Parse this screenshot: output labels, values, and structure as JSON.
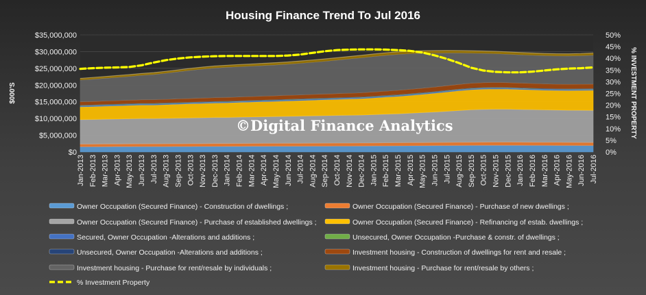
{
  "chart_data": {
    "type": "area",
    "title": "Housing  Finance  Trend  To  Jul  2016",
    "ylabel": "$000'S",
    "y2label": "% INVESTMENT PROPERTY",
    "ylim": [
      0,
      35000000
    ],
    "y2lim": [
      0,
      50
    ],
    "y_ticks": [
      "$0",
      "$5,000,000",
      "$10,000,000",
      "$15,000,000",
      "$20,000,000",
      "$25,000,000",
      "$30,000,000",
      "$35,000,000"
    ],
    "y2_ticks": [
      "0%",
      "5%",
      "10%",
      "15%",
      "20%",
      "25%",
      "30%",
      "35%",
      "40%",
      "45%",
      "50%"
    ],
    "stacked": true,
    "legend_position": "bottom",
    "watermark": "©Digital Finance Analytics",
    "categories": [
      "Jan-2013",
      "Feb-2013",
      "Mar-2013",
      "Apr-2013",
      "May-2013",
      "Jun-2013",
      "Jul-2013",
      "Aug-2013",
      "Sep-2013",
      "Oct-2013",
      "Nov-2013",
      "Dec-2013",
      "Jan-2014",
      "Feb-2014",
      "Mar-2014",
      "Apr-2014",
      "May-2014",
      "Jun-2014",
      "Jul-2014",
      "Aug-2014",
      "Sep-2014",
      "Oct-2014",
      "Nov-2014",
      "Dec-2014",
      "Jan-2015",
      "Feb-2015",
      "Mar-2015",
      "Apr-2015",
      "May-2015",
      "Jun-2015",
      "Jul-2015",
      "Aug-2015",
      "Sep-2015",
      "Oct-2015",
      "Nov-2015",
      "Dec-2015",
      "Jan-2016",
      "Feb-2016",
      "Mar-2016",
      "Apr-2016",
      "May-2016",
      "Jun-2016",
      "Jul-2016"
    ],
    "series": [
      {
        "name": "Owner Occupation (Secured Finance) - Construction of dwellings ;",
        "color": "#5b9bd5",
        "values": [
          1600000,
          1600000,
          1620000,
          1630000,
          1640000,
          1650000,
          1650000,
          1660000,
          1670000,
          1680000,
          1690000,
          1700000,
          1710000,
          1720000,
          1730000,
          1740000,
          1750000,
          1760000,
          1770000,
          1780000,
          1790000,
          1800000,
          1810000,
          1820000,
          1840000,
          1860000,
          1880000,
          1900000,
          1920000,
          1940000,
          1960000,
          1980000,
          2000000,
          2020000,
          2030000,
          2030000,
          2020000,
          2010000,
          2000000,
          1990000,
          1980000,
          1970000,
          1960000
        ]
      },
      {
        "name": "Owner Occupation (Secured Finance) - Purchase of new dwellings ;",
        "color": "#ed7d31",
        "values": [
          800000,
          800000,
          810000,
          810000,
          820000,
          820000,
          820000,
          830000,
          830000,
          840000,
          840000,
          850000,
          850000,
          860000,
          860000,
          870000,
          870000,
          880000,
          880000,
          890000,
          890000,
          900000,
          900000,
          910000,
          910000,
          920000,
          920000,
          930000,
          930000,
          940000,
          940000,
          950000,
          950000,
          950000,
          950000,
          950000,
          940000,
          940000,
          930000,
          930000,
          920000,
          920000,
          910000
        ]
      },
      {
        "name": "Owner Occupation (Secured Finance) - Purchase of established dwellings ;",
        "color": "#a5a5a5",
        "values": [
          7300000,
          7350000,
          7400000,
          7450000,
          7500000,
          7550000,
          7550000,
          7600000,
          7650000,
          7700000,
          7750000,
          7800000,
          7800000,
          7850000,
          7900000,
          7950000,
          8000000,
          8050000,
          8100000,
          8150000,
          8200000,
          8250000,
          8300000,
          8350000,
          8450000,
          8550000,
          8650000,
          8800000,
          8950000,
          9100000,
          9300000,
          9500000,
          9700000,
          9800000,
          9850000,
          9850000,
          9800000,
          9750000,
          9700000,
          9650000,
          9600000,
          9600000,
          9600000
        ]
      },
      {
        "name": "Owner Occupation (Secured Finance) - Refinancing of estab. dwellings ;",
        "color": "#ffc000",
        "values": [
          3800000,
          3850000,
          3900000,
          3950000,
          4000000,
          4050000,
          4050000,
          4100000,
          4150000,
          4200000,
          4250000,
          4300000,
          4350000,
          4400000,
          4450000,
          4500000,
          4550000,
          4600000,
          4650000,
          4700000,
          4750000,
          4800000,
          4850000,
          4900000,
          5000000,
          5100000,
          5200000,
          5300000,
          5450000,
          5600000,
          5750000,
          5900000,
          6000000,
          6050000,
          6050000,
          6000000,
          5950000,
          5900000,
          5850000,
          5850000,
          5900000,
          5950000,
          6000000
        ]
      },
      {
        "name": "Secured, Owner Occupation -Alterations and additions ;",
        "color": "#4472c4",
        "values": [
          300000,
          300000,
          300000,
          300000,
          300000,
          300000,
          300000,
          300000,
          300000,
          300000,
          300000,
          300000,
          300000,
          300000,
          300000,
          300000,
          300000,
          300000,
          300000,
          300000,
          300000,
          300000,
          300000,
          300000,
          300000,
          300000,
          300000,
          300000,
          300000,
          300000,
          300000,
          300000,
          300000,
          300000,
          300000,
          300000,
          300000,
          300000,
          300000,
          300000,
          300000,
          300000,
          300000
        ]
      },
      {
        "name": "Unsecured, Owner Occupation -Purchase & constr. of dwellings ;",
        "color": "#70ad47",
        "values": [
          100000,
          100000,
          100000,
          100000,
          100000,
          100000,
          100000,
          100000,
          100000,
          100000,
          100000,
          100000,
          100000,
          100000,
          100000,
          100000,
          100000,
          100000,
          100000,
          100000,
          100000,
          100000,
          100000,
          100000,
          100000,
          100000,
          100000,
          100000,
          100000,
          100000,
          100000,
          100000,
          100000,
          100000,
          100000,
          100000,
          100000,
          100000,
          100000,
          100000,
          100000,
          100000,
          100000
        ]
      },
      {
        "name": "Unsecured, Owner Occupation -Alterations and additions ;",
        "color": "#264478",
        "values": [
          150000,
          150000,
          150000,
          150000,
          150000,
          150000,
          150000,
          150000,
          150000,
          150000,
          150000,
          150000,
          150000,
          150000,
          150000,
          150000,
          150000,
          150000,
          150000,
          150000,
          150000,
          150000,
          150000,
          150000,
          150000,
          150000,
          150000,
          150000,
          150000,
          150000,
          150000,
          150000,
          150000,
          150000,
          150000,
          150000,
          150000,
          150000,
          150000,
          150000,
          150000,
          150000,
          150000
        ]
      },
      {
        "name": "Investment housing - Construction of dwellings for rent and resale ;",
        "color": "#9e480e",
        "values": [
          1000000,
          1000000,
          1010000,
          1020000,
          1030000,
          1040000,
          1050000,
          1060000,
          1070000,
          1080000,
          1090000,
          1100000,
          1110000,
          1120000,
          1130000,
          1140000,
          1150000,
          1160000,
          1170000,
          1180000,
          1190000,
          1200000,
          1210000,
          1220000,
          1240000,
          1260000,
          1280000,
          1300000,
          1320000,
          1340000,
          1360000,
          1380000,
          1400000,
          1410000,
          1410000,
          1400000,
          1390000,
          1380000,
          1370000,
          1360000,
          1350000,
          1340000,
          1330000
        ]
      },
      {
        "name": "Investment housing - Purchase for rent/resale by individuals ;",
        "color": "#636363",
        "values": [
          6500000,
          6650000,
          6800000,
          6950000,
          7100000,
          7300000,
          7550000,
          7800000,
          8100000,
          8400000,
          8650000,
          8850000,
          9000000,
          9050000,
          9100000,
          9150000,
          9200000,
          9300000,
          9450000,
          9600000,
          9800000,
          10000000,
          10250000,
          10450000,
          10600000,
          10700000,
          10750000,
          10650000,
          10450000,
          10150000,
          9800000,
          9400000,
          9000000,
          8750000,
          8600000,
          8500000,
          8450000,
          8450000,
          8450000,
          8450000,
          8450000,
          8500000,
          8650000
        ]
      },
      {
        "name": "Investment housing - Purchase for rent/resale by others ;",
        "color": "#997300",
        "values": [
          450000,
          460000,
          470000,
          480000,
          490000,
          500000,
          510000,
          520000,
          530000,
          540000,
          550000,
          560000,
          570000,
          580000,
          590000,
          600000,
          610000,
          620000,
          630000,
          640000,
          650000,
          660000,
          670000,
          680000,
          690000,
          700000,
          700000,
          700000,
          700000,
          700000,
          690000,
          680000,
          670000,
          660000,
          650000,
          640000,
          630000,
          620000,
          610000,
          600000,
          600000,
          600000,
          600000
        ]
      }
    ],
    "line_series": {
      "name": "% Investment Property",
      "color": "#ffff00",
      "axis": "right",
      "values": [
        35.5,
        35.8,
        36,
        36.1,
        36.3,
        37,
        38.2,
        39.2,
        39.9,
        40.4,
        40.7,
        40.9,
        41,
        41,
        41,
        41,
        41,
        41.2,
        41.6,
        42.3,
        43,
        43.5,
        43.7,
        43.8,
        43.8,
        43.7,
        43.5,
        43.2,
        42.5,
        41.3,
        39.8,
        38,
        36,
        34.8,
        34.2,
        34,
        34,
        34.3,
        34.8,
        35.3,
        35.6,
        35.8,
        36.1
      ]
    }
  }
}
